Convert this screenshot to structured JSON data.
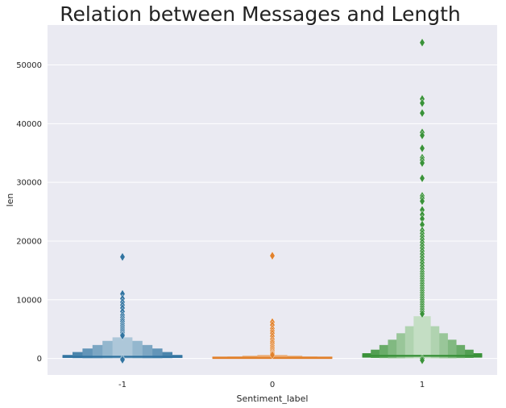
{
  "chart_data": {
    "type": "boxen",
    "title": "Relation between Messages and Length",
    "xlabel": "Sentiment_label",
    "ylabel": "len",
    "categories": [
      "-1",
      "0",
      "1"
    ],
    "colors": [
      "#3274a1",
      "#e1812c",
      "#3a923a"
    ],
    "yticks": [
      0,
      10000,
      20000,
      30000,
      40000,
      50000
    ],
    "ylim": [
      -2800,
      56800
    ],
    "grid": true,
    "series": [
      {
        "category": "-1",
        "median": 300,
        "levels": [
          [
            100,
            600
          ],
          [
            60,
            1100
          ],
          [
            40,
            1700
          ],
          [
            25,
            2300
          ],
          [
            15,
            3000
          ],
          [
            8,
            3600
          ]
        ],
        "outliers": [
          17300,
          11000,
          10200,
          9600,
          9100,
          8600,
          8000,
          7400,
          7000,
          6600,
          6300,
          5900,
          5600,
          5300,
          5000,
          4700,
          4400,
          4100,
          3900,
          0,
          -200
        ]
      },
      {
        "category": "0",
        "median": 100,
        "levels": [
          [
            40,
            200
          ],
          [
            25,
            320
          ],
          [
            15,
            450
          ],
          [
            8,
            600
          ]
        ],
        "outliers": [
          17500,
          6200,
          5700,
          5100,
          4700,
          4300,
          3800,
          3300,
          2900,
          2600,
          2200,
          1900,
          1600,
          1300,
          1000,
          800,
          600
        ]
      },
      {
        "category": "1",
        "median": 450,
        "levels": [
          [
            150,
            900
          ],
          [
            90,
            1500
          ],
          [
            60,
            2300
          ],
          [
            40,
            3200
          ],
          [
            25,
            4300
          ],
          [
            15,
            5500
          ],
          [
            8,
            7200
          ]
        ],
        "outliers": [
          53800,
          44200,
          43500,
          41800,
          38500,
          38000,
          35800,
          34200,
          33800,
          33300,
          30700,
          27700,
          27300,
          26800,
          25300,
          24500,
          23800,
          22800,
          21800,
          21300,
          20800,
          20300,
          19800,
          19300,
          18800,
          18300,
          17800,
          17300,
          16800,
          16300,
          15800,
          15300,
          14800,
          14400,
          14000,
          13600,
          13200,
          12800,
          12400,
          12000,
          11600,
          11200,
          10800,
          10400,
          10000,
          9600,
          9200,
          8800,
          8400,
          8000,
          7600,
          0,
          -300
        ]
      }
    ]
  }
}
